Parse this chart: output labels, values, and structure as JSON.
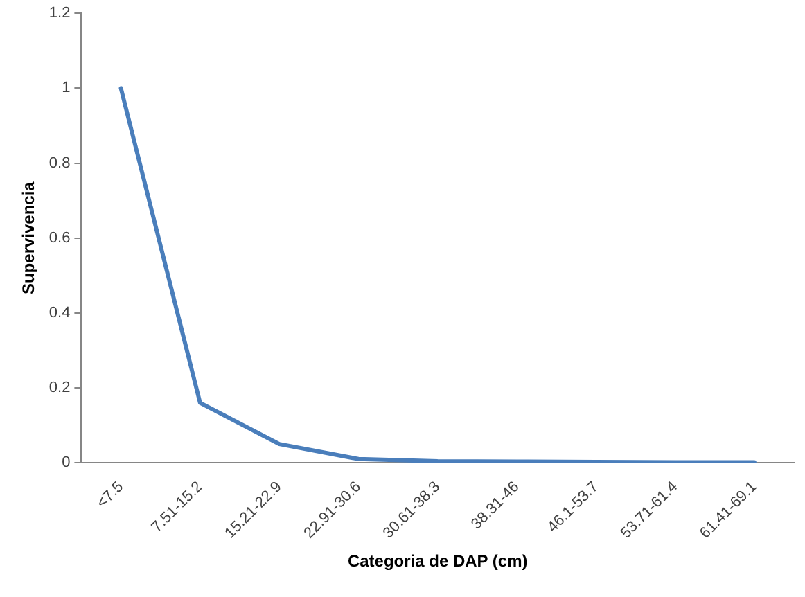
{
  "chart_data": {
    "type": "line",
    "xlabel": "Categoria de DAP (cm)",
    "ylabel": "Supervivencia",
    "categories": [
      "<7.5",
      "7.51-15.2",
      "15.21-22.9",
      "22.91-30.6",
      "30.61-38.3",
      "38.31-46",
      "46.1-53.7",
      "53.71-61.4",
      "61.41-69.1"
    ],
    "series": [
      {
        "color": "#4a7ebb",
        "values": [
          1,
          0.16,
          0.05,
          0.01,
          0.004,
          0.003,
          0.002,
          0.001,
          0.001
        ]
      }
    ],
    "ylim": [
      0,
      1.2
    ],
    "yticks": [
      0,
      0.2,
      0.4,
      0.6,
      0.8,
      1,
      1.2
    ],
    "grid": false,
    "legend": false,
    "marker": "none",
    "line_style": "solid"
  }
}
